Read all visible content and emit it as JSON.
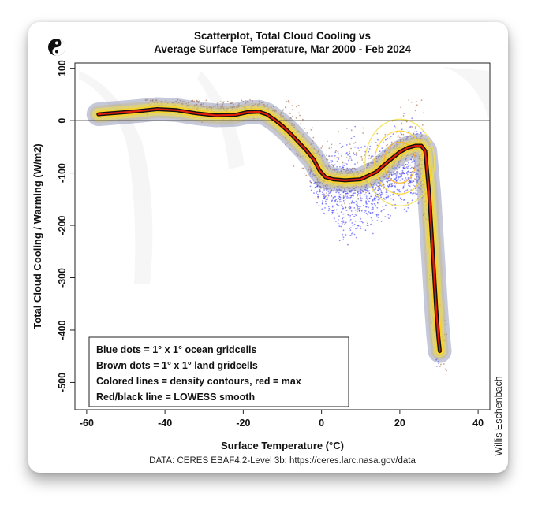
{
  "chart_data": {
    "type": "scatter",
    "title_line1": "Scatterplot, Total Cloud Cooling vs",
    "title_line2": "Average Surface Temperature, Mar 2000 - Feb 2024",
    "xlabel": "Surface Temperature (°C)",
    "ylabel": "Total Cloud Cooling / Warming (W/m2)",
    "xlim": [
      -63,
      43
    ],
    "ylim": [
      -552,
      110
    ],
    "x_ticks": [
      -60,
      -40,
      -20,
      0,
      20,
      40
    ],
    "y_ticks": [
      100,
      0,
      -100,
      -200,
      -300,
      -400,
      -500
    ],
    "zero_line": 0,
    "legend": [
      "Blue dots = 1° x 1° ocean gridcells",
      "Brown dots = 1° x 1° land gridcells",
      "Colored lines = density contours, red = max",
      "Red/black line = LOWESS smooth"
    ],
    "lowess": {
      "x": [
        -57,
        -52,
        -47,
        -42,
        -37,
        -32,
        -27,
        -22,
        -19,
        -16,
        -14,
        -12,
        -10,
        -8,
        -6,
        -4,
        -2,
        -0.5,
        1,
        3,
        6,
        10,
        14,
        17,
        20,
        22,
        24,
        25.5,
        26.5,
        27.5,
        28.5,
        29.3,
        29.8,
        30.2
      ],
      "y": [
        12,
        15,
        18,
        22,
        20,
        14,
        10,
        11,
        16,
        17,
        12,
        2,
        -10,
        -24,
        -40,
        -56,
        -74,
        -95,
        -108,
        -112,
        -114,
        -112,
        -98,
        -78,
        -60,
        -52,
        -48,
        -48,
        -58,
        -140,
        -260,
        -360,
        -410,
        -440
      ]
    },
    "series": [
      {
        "name": "Blue dots = 1° x 1° ocean gridcells",
        "color": "#3333ff"
      },
      {
        "name": "Brown dots = 1° x 1° land gridcells",
        "color": "#a0623a"
      }
    ],
    "source": "DATA: CERES EBAF4.2-Level 3b: https://ceres.larc.nasa.gov/data",
    "credit": "Willis Eschenbach"
  }
}
